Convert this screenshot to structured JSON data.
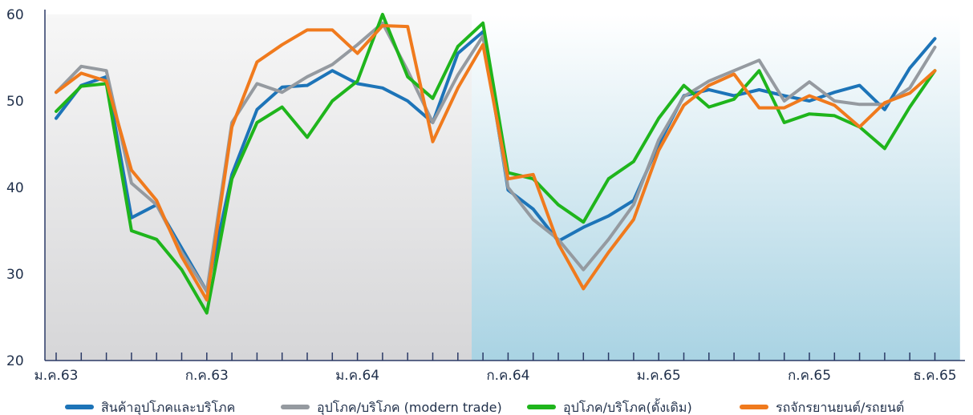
{
  "chart_data": {
    "type": "line",
    "ylim": [
      20,
      60
    ],
    "yticks": [
      20,
      30,
      40,
      50,
      60
    ],
    "x_count": 36,
    "xtick_labels": [
      {
        "index": 0,
        "label": "ม.ค.63"
      },
      {
        "index": 6,
        "label": "ก.ค.63"
      },
      {
        "index": 12,
        "label": "ม.ค.64"
      },
      {
        "index": 18,
        "label": "ก.ค.64"
      },
      {
        "index": 24,
        "label": "ม.ค.65"
      },
      {
        "index": 30,
        "label": "ก.ค.65"
      },
      {
        "index": 35,
        "label": "ธ.ค.65"
      }
    ],
    "shading": [
      {
        "from_index": -1,
        "to_index": 16.55,
        "style": "gray-gradient"
      },
      {
        "from_index": 16.55,
        "to_index": 36,
        "style": "blue-gradient"
      }
    ],
    "series": [
      {
        "name": "สินค้าอุปโภคและบริโภค",
        "color": "#1d74b8",
        "values": [
          48.0,
          51.8,
          52.8,
          36.5,
          38.0,
          33.0,
          28.0,
          41.5,
          49.0,
          51.6,
          51.8,
          53.5,
          52.0,
          51.5,
          50.0,
          47.5,
          55.5,
          58.0,
          39.7,
          37.5,
          33.8,
          35.4,
          36.7,
          38.5,
          45.0,
          50.6,
          51.3,
          50.6,
          51.3,
          50.6,
          50.0,
          51.0,
          51.8,
          49.0,
          53.8,
          57.2
        ]
      },
      {
        "name": "อุปโภค/บริโภค (modern trade)",
        "color": "#959aa0",
        "values": [
          51.0,
          54.0,
          53.5,
          40.5,
          38.0,
          32.5,
          28.0,
          47.5,
          52.0,
          51.0,
          52.8,
          54.2,
          56.5,
          59.0,
          53.5,
          47.5,
          53.0,
          57.5,
          40.0,
          36.3,
          34.0,
          30.5,
          34.0,
          38.0,
          45.5,
          50.5,
          52.3,
          53.5,
          54.7,
          50.0,
          52.2,
          50.0,
          49.6,
          49.6,
          51.5,
          56.2
        ]
      },
      {
        "name": "อุปโภค/บริโภค(ดั้งเดิม)",
        "color": "#1fb51c",
        "values": [
          48.8,
          51.7,
          52.0,
          35.0,
          34.0,
          30.5,
          25.5,
          41.0,
          47.5,
          49.3,
          45.8,
          50.0,
          52.3,
          60.0,
          52.8,
          50.3,
          56.3,
          59.0,
          41.7,
          41.0,
          38.0,
          36.0,
          41.0,
          43.0,
          48.0,
          51.8,
          49.3,
          50.2,
          53.5,
          47.5,
          48.5,
          48.3,
          47.0,
          44.5,
          49.3,
          53.5
        ]
      },
      {
        "name": "รถจักรยานยนต์/รถยนต์",
        "color": "#f07a1d",
        "values": [
          51.0,
          53.2,
          52.3,
          42.0,
          38.5,
          32.0,
          27.0,
          47.0,
          54.5,
          56.5,
          58.2,
          58.2,
          55.5,
          58.7,
          58.6,
          45.3,
          51.5,
          56.5,
          41.0,
          41.5,
          33.5,
          28.3,
          32.5,
          36.3,
          44.3,
          49.5,
          51.8,
          53.1,
          49.2,
          49.2,
          50.6,
          49.5,
          47.0,
          49.8,
          50.9,
          53.5
        ]
      }
    ]
  }
}
